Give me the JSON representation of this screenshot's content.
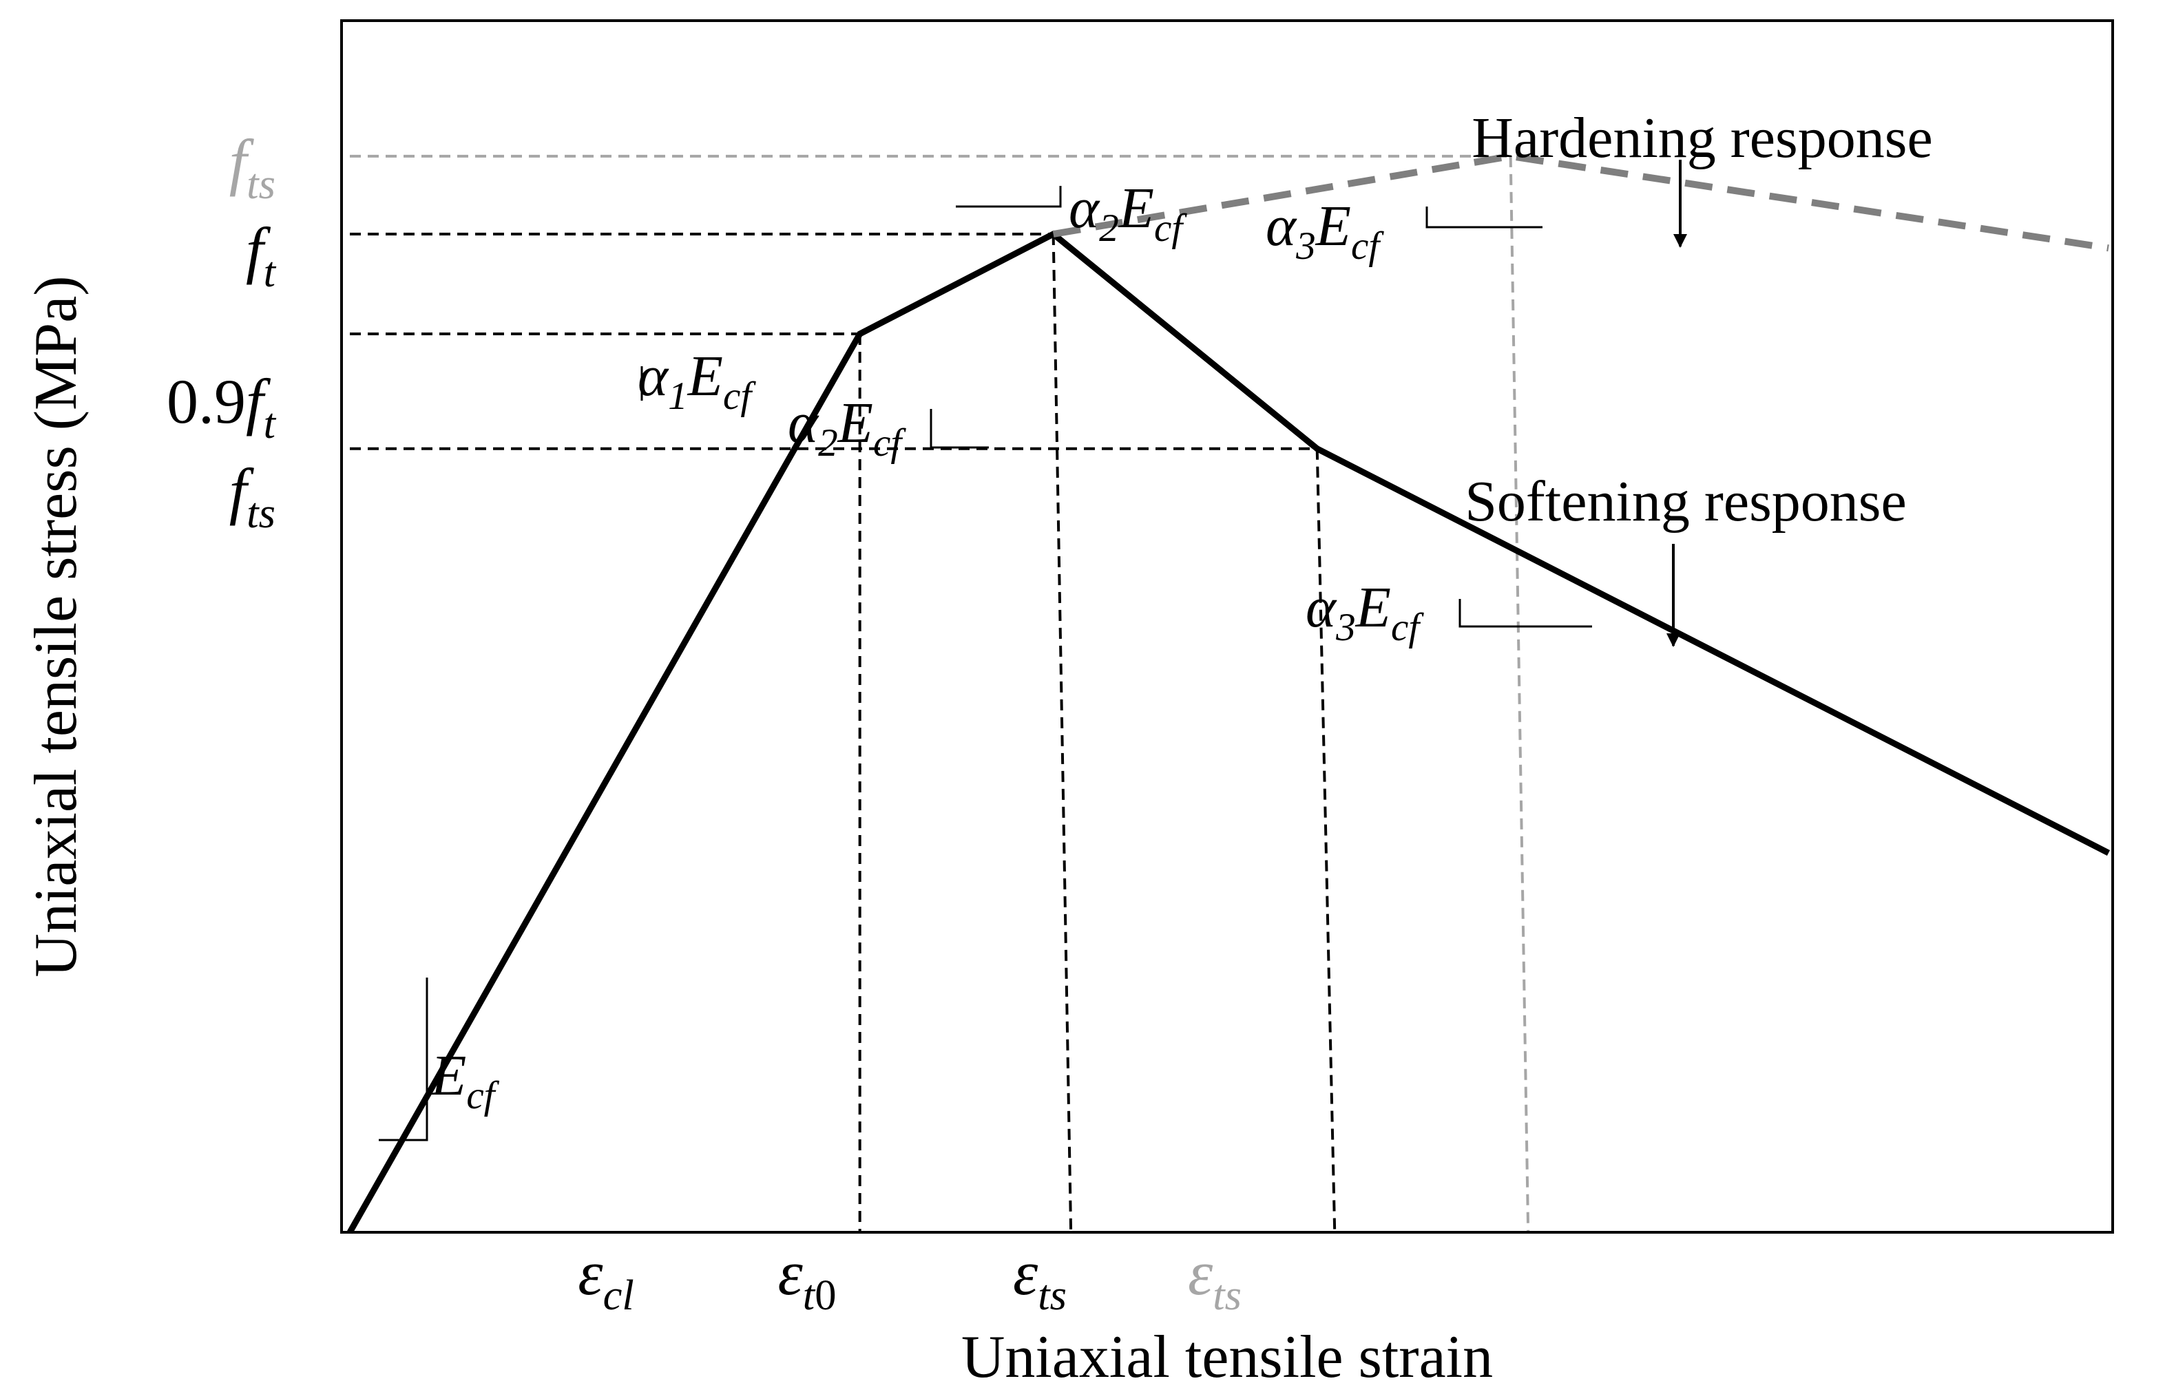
{
  "chart_data": {
    "type": "line",
    "title": "",
    "xlabel": "Uniaxial tensile strain",
    "ylabel": "Uniaxial tensile stress (MPa)",
    "grid": false,
    "x_ticks": [
      {
        "id": "ecl",
        "base": "ε",
        "sub": "cl",
        "color": "#000000"
      },
      {
        "id": "et0",
        "base": "ε",
        "sub": "t0",
        "sub_upright_tail": "0",
        "color": "#000000"
      },
      {
        "id": "ets",
        "base": "ε",
        "sub": "ts",
        "color": "#000000"
      },
      {
        "id": "ets_h",
        "base": "ε",
        "sub": "ts",
        "color": "#a6a6a6"
      }
    ],
    "y_ticks": [
      {
        "id": "fts_h",
        "prefix": "",
        "base": "f",
        "sub": "ts",
        "color": "#a6a6a6"
      },
      {
        "id": "ft",
        "prefix": "",
        "base": "f",
        "sub": "t",
        "color": "#000000"
      },
      {
        "id": "p9ft",
        "prefix": "0.9",
        "base": "f",
        "sub": "t",
        "color": "#000000"
      },
      {
        "id": "fts",
        "prefix": "",
        "base": "f",
        "sub": "ts",
        "color": "#000000"
      }
    ],
    "series": [
      {
        "id": "softening",
        "color": "#000000",
        "dashed": false,
        "points": [
          [
            0.0,
            0.0
          ],
          [
            0.29,
            0.9
          ],
          [
            0.4,
            1.0
          ],
          [
            0.55,
            0.785
          ],
          [
            1.0,
            0.38
          ]
        ]
      },
      {
        "id": "hardening",
        "color": "#7f7f7f",
        "dashed": true,
        "points": [
          [
            0.4,
            1.0
          ],
          [
            0.66,
            1.078
          ],
          [
            1.0,
            0.986
          ]
        ]
      }
    ],
    "guides": [
      {
        "color": "#000000",
        "points": [
          [
            0.0,
            1.0
          ],
          [
            0.4,
            1.0
          ]
        ]
      },
      {
        "color": "#000000",
        "points": [
          [
            0.0,
            0.9
          ],
          [
            0.29,
            0.9
          ]
        ]
      },
      {
        "color": "#000000",
        "points": [
          [
            0.0,
            0.785
          ],
          [
            0.55,
            0.785
          ]
        ]
      },
      {
        "color": "#a6a6a6",
        "points": [
          [
            0.0,
            1.078
          ],
          [
            0.66,
            1.078
          ]
        ]
      },
      {
        "color": "#000000",
        "points": [
          [
            0.29,
            0.9
          ],
          [
            0.29,
            0.0
          ]
        ]
      },
      {
        "color": "#000000",
        "points": [
          [
            0.4,
            1.0
          ],
          [
            0.41,
            0.0
          ]
        ]
      },
      {
        "color": "#000000",
        "points": [
          [
            0.55,
            0.785
          ],
          [
            0.56,
            0.0
          ]
        ]
      },
      {
        "color": "#a6a6a6",
        "points": [
          [
            0.66,
            1.078
          ],
          [
            0.67,
            0.0
          ]
        ]
      }
    ],
    "annotations": [
      {
        "id": "ecf",
        "prefix": "",
        "base": "E",
        "sub": "cf"
      },
      {
        "id": "a1",
        "prefix": "α",
        "prefix_sub": "1",
        "base": "E",
        "sub": "cf"
      },
      {
        "id": "a2_soft",
        "prefix": "α",
        "prefix_sub": "2",
        "base": "E",
        "sub": "cf"
      },
      {
        "id": "a2_hard",
        "prefix": "α",
        "prefix_sub": "2",
        "base": "E",
        "sub": "cf"
      },
      {
        "id": "a3_hard",
        "prefix": "α",
        "prefix_sub": "3",
        "base": "E",
        "sub": "cf"
      },
      {
        "id": "a3_soft",
        "prefix": "α",
        "prefix_sub": "3",
        "base": "E",
        "sub": "cf"
      }
    ],
    "legend_labels": [
      {
        "id": "hardening",
        "text": "Hardening response"
      },
      {
        "id": "softening",
        "text": "Softening response"
      }
    ]
  }
}
